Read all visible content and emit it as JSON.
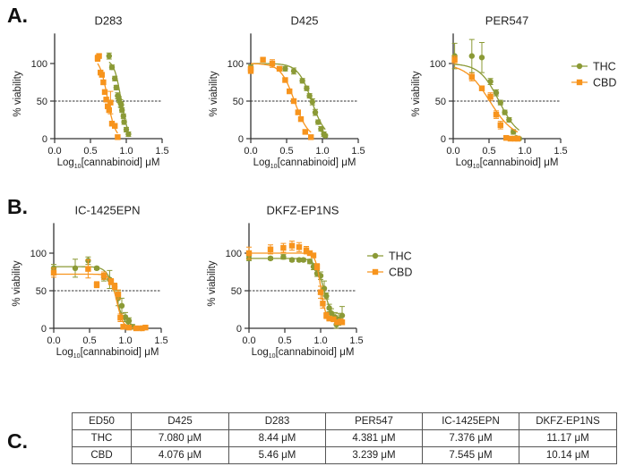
{
  "panel_labels": {
    "a": "A.",
    "b": "B.",
    "c": "C."
  },
  "colors": {
    "THC": "#8b9a36",
    "CBD": "#f7941d"
  },
  "chart_data": [
    {
      "id": "D283",
      "type": "scatter",
      "title": "D283",
      "xlabel_main": "Log",
      "xlabel_sub": "10",
      "xlabel_rest": "[cannabinoid] μM",
      "ylabel": "% viability",
      "xlim": [
        0,
        1.5
      ],
      "ylim": [
        0,
        140
      ],
      "xticks": [
        "0.0",
        "0.5",
        "1.0",
        "1.5"
      ],
      "yticks": [
        "0",
        "50",
        "100"
      ],
      "reference_line_y": 50,
      "legend": false,
      "series": [
        {
          "name": "THC",
          "marker": "circle",
          "fit": {
            "log_ed50": 0.926,
            "hill": -9,
            "top": 105,
            "bottom": 0
          },
          "points": [
            [
              0.76,
              110,
              4
            ],
            [
              0.8,
              95,
              3
            ],
            [
              0.84,
              80,
              3
            ],
            [
              0.86,
              68,
              3
            ],
            [
              0.88,
              57,
              4
            ],
            [
              0.9,
              52,
              4
            ],
            [
              0.92,
              47,
              5
            ],
            [
              0.93,
              45,
              4
            ],
            [
              0.94,
              38,
              3
            ],
            [
              0.96,
              30,
              3
            ],
            [
              0.97,
              22,
              3
            ],
            [
              1.0,
              12,
              3
            ],
            [
              1.03,
              6,
              3
            ]
          ]
        },
        {
          "name": "CBD",
          "marker": "square",
          "fit": {
            "log_ed50": 0.737,
            "hill": -8,
            "top": 108,
            "bottom": 0
          },
          "points": [
            [
              0.6,
              107,
              4
            ],
            [
              0.62,
              110,
              3
            ],
            [
              0.64,
              88,
              3
            ],
            [
              0.66,
              85,
              3
            ],
            [
              0.68,
              75,
              3
            ],
            [
              0.7,
              62,
              3
            ],
            [
              0.72,
              52,
              3
            ],
            [
              0.74,
              43,
              3
            ],
            [
              0.76,
              38,
              3
            ],
            [
              0.78,
              48,
              15
            ],
            [
              0.8,
              20,
              3
            ],
            [
              0.84,
              17,
              3
            ],
            [
              0.88,
              2,
              2
            ]
          ]
        }
      ]
    },
    {
      "id": "D425",
      "type": "scatter",
      "title": "D425",
      "xlabel_main": "Log",
      "xlabel_sub": "10",
      "xlabel_rest": "[cannabinoid] μM",
      "ylabel": "% viability",
      "xlim": [
        0,
        1.5
      ],
      "ylim": [
        0,
        140
      ],
      "xticks": [
        "0.0",
        "0.5",
        "1.0",
        "1.5"
      ],
      "yticks": [
        "0",
        "50",
        "100"
      ],
      "reference_line_y": 50,
      "legend": false,
      "series": [
        {
          "name": "THC",
          "marker": "circle",
          "fit": {
            "log_ed50": 0.85,
            "hill": -4.5,
            "top": 100,
            "bottom": 0
          },
          "points": [
            [
              0.0,
              95,
              3
            ],
            [
              0.48,
              93,
              3
            ],
            [
              0.6,
              90,
              4
            ],
            [
              0.72,
              77,
              3
            ],
            [
              0.78,
              67,
              3
            ],
            [
              0.82,
              57,
              3
            ],
            [
              0.86,
              49,
              4
            ],
            [
              0.9,
              35,
              4
            ],
            [
              0.94,
              22,
              3
            ],
            [
              0.98,
              13,
              3
            ],
            [
              1.02,
              6,
              3
            ],
            [
              1.04,
              4,
              2
            ]
          ]
        },
        {
          "name": "CBD",
          "marker": "square",
          "fit": {
            "log_ed50": 0.61,
            "hill": -4.5,
            "top": 100,
            "bottom": 0
          },
          "points": [
            [
              0.0,
              90,
              3
            ],
            [
              0.0,
              93,
              3
            ],
            [
              0.17,
              105,
              3
            ],
            [
              0.3,
              100,
              5
            ],
            [
              0.4,
              93,
              3
            ],
            [
              0.48,
              78,
              2
            ],
            [
              0.54,
              63,
              2
            ],
            [
              0.6,
              50,
              2
            ],
            [
              0.66,
              35,
              2
            ],
            [
              0.7,
              26,
              2
            ],
            [
              0.76,
              9,
              2
            ],
            [
              0.84,
              2,
              2
            ]
          ]
        }
      ]
    },
    {
      "id": "PER547",
      "type": "scatter",
      "title": "PER547",
      "xlabel_main": "Log",
      "xlabel_sub": "10",
      "xlabel_rest": "[cannabinoid] μM",
      "ylabel": "% viability",
      "xlim": [
        0,
        1.5
      ],
      "ylim": [
        0,
        140
      ],
      "xticks": [
        "0.0",
        "0.5",
        "1.0",
        "1.5"
      ],
      "yticks": [
        "0",
        "50",
        "100"
      ],
      "reference_line_y": 50,
      "legend": true,
      "series": [
        {
          "name": "THC",
          "marker": "circle",
          "fit": {
            "log_ed50": 0.64,
            "hill": -3.2,
            "top": 100,
            "bottom": 0
          },
          "points": [
            [
              0.02,
              110,
              17
            ],
            [
              0.26,
              110,
              22
            ],
            [
              0.4,
              108,
              20
            ],
            [
              0.52,
              76,
              4
            ],
            [
              0.6,
              61,
              4
            ],
            [
              0.66,
              48,
              3
            ],
            [
              0.72,
              35,
              3
            ],
            [
              0.78,
              25,
              3
            ],
            [
              0.84,
              9,
              3
            ],
            [
              0.88,
              1,
              2
            ],
            [
              0.92,
              0,
              2
            ]
          ]
        },
        {
          "name": "CBD",
          "marker": "square",
          "fit": {
            "log_ed50": 0.51,
            "hill": -2.6,
            "top": 100,
            "bottom": 0
          },
          "points": [
            [
              0.02,
              105,
              5
            ],
            [
              0.26,
              82,
              5
            ],
            [
              0.4,
              67,
              3
            ],
            [
              0.52,
              56,
              5
            ],
            [
              0.6,
              32,
              5
            ],
            [
              0.66,
              18,
              5
            ],
            [
              0.74,
              1,
              2
            ],
            [
              0.8,
              0,
              2
            ],
            [
              0.86,
              0,
              2
            ],
            [
              0.9,
              0,
              2
            ]
          ]
        }
      ]
    },
    {
      "id": "IC-1425EPN",
      "type": "scatter",
      "title": "IC-1425EPN",
      "xlabel_main": "Log",
      "xlabel_sub": "10",
      "xlabel_rest": "[cannabinoid] μM",
      "ylabel": "% viability",
      "xlim": [
        0,
        1.5
      ],
      "ylim": [
        0,
        140
      ],
      "xticks": [
        "0.0",
        "0.5",
        "1.0",
        "1.5"
      ],
      "yticks": [
        "0",
        "50",
        "100"
      ],
      "reference_line_y": 50,
      "legend": false,
      "series": [
        {
          "name": "THC",
          "marker": "circle",
          "fit": {
            "log_ed50": 0.87,
            "hill": -7,
            "top": 82,
            "bottom": 0
          },
          "points": [
            [
              0.0,
              80,
              5
            ],
            [
              0.3,
              80,
              12
            ],
            [
              0.48,
              90,
              5
            ],
            [
              0.6,
              80,
              2
            ],
            [
              0.7,
              68,
              5
            ],
            [
              0.78,
              65,
              12
            ],
            [
              0.85,
              55,
              5
            ],
            [
              0.9,
              40,
              10
            ],
            [
              0.95,
              30,
              10
            ],
            [
              1.0,
              15,
              6
            ],
            [
              1.05,
              10,
              4
            ],
            [
              1.1,
              2,
              3
            ],
            [
              1.22,
              0,
              2
            ]
          ]
        },
        {
          "name": "CBD",
          "marker": "square",
          "fit": {
            "log_ed50": 0.88,
            "hill": -10,
            "top": 72,
            "bottom": 0
          },
          "points": [
            [
              0.0,
              74,
              6
            ],
            [
              0.48,
              79,
              12
            ],
            [
              0.6,
              58,
              4
            ],
            [
              0.7,
              70,
              5
            ],
            [
              0.8,
              62,
              4
            ],
            [
              0.85,
              56,
              4
            ],
            [
              0.9,
              45,
              6
            ],
            [
              0.93,
              14,
              5
            ],
            [
              0.97,
              2,
              3
            ],
            [
              1.05,
              1,
              2
            ],
            [
              1.15,
              0,
              2
            ],
            [
              1.23,
              0,
              2
            ],
            [
              1.28,
              1,
              2
            ]
          ]
        }
      ]
    },
    {
      "id": "DKFZ-EP1NS",
      "type": "scatter",
      "title": "DKFZ-EP1NS",
      "xlabel_main": "Log",
      "xlabel_sub": "10",
      "xlabel_rest": "[cannabinoid] μM",
      "ylabel": "% viability",
      "xlim": [
        0,
        1.5
      ],
      "ylim": [
        0,
        140
      ],
      "xticks": [
        "0.0",
        "0.5",
        "1.0",
        "1.5"
      ],
      "yticks": [
        "0",
        "50",
        "100"
      ],
      "reference_line_y": 50,
      "legend": true,
      "series": [
        {
          "name": "THC",
          "marker": "circle",
          "fit": {
            "log_ed50": 1.05,
            "hill": -7,
            "top": 93,
            "bottom": 8
          },
          "points": [
            [
              0.0,
              93,
              3
            ],
            [
              0.3,
              93,
              2
            ],
            [
              0.48,
              95,
              3
            ],
            [
              0.6,
              91,
              2
            ],
            [
              0.7,
              91,
              2
            ],
            [
              0.76,
              91,
              2
            ],
            [
              0.85,
              89,
              3
            ],
            [
              0.9,
              82,
              4
            ],
            [
              0.95,
              73,
              4
            ],
            [
              1.0,
              70,
              5
            ],
            [
              1.05,
              53,
              10
            ],
            [
              1.08,
              43,
              4
            ],
            [
              1.12,
              27,
              5
            ],
            [
              1.15,
              20,
              6
            ],
            [
              1.2,
              15,
              6
            ],
            [
              1.22,
              5,
              5
            ],
            [
              1.25,
              12,
              8
            ],
            [
              1.3,
              17,
              12
            ]
          ]
        },
        {
          "name": "CBD",
          "marker": "square",
          "fit": {
            "log_ed50": 1.0,
            "hill": -12,
            "top": 100,
            "bottom": 10
          },
          "points": [
            [
              0.0,
              100,
              8
            ],
            [
              0.3,
              105,
              6
            ],
            [
              0.48,
              107,
              6
            ],
            [
              0.6,
              110,
              6
            ],
            [
              0.7,
              108,
              6
            ],
            [
              0.8,
              104,
              5
            ],
            [
              0.85,
              100,
              3
            ],
            [
              0.9,
              97,
              3
            ],
            [
              0.95,
              82,
              4
            ],
            [
              1.0,
              48,
              8
            ],
            [
              1.03,
              33,
              6
            ],
            [
              1.08,
              17,
              4
            ],
            [
              1.12,
              13,
              3
            ],
            [
              1.18,
              12,
              3
            ],
            [
              1.23,
              8,
              3
            ],
            [
              1.28,
              9,
              3
            ],
            [
              1.3,
              8,
              3
            ]
          ]
        }
      ]
    }
  ],
  "table": {
    "header": [
      "ED50",
      "D425",
      "D283",
      "PER547",
      "IC-1425EPN",
      "DKFZ-EP1NS"
    ],
    "rows": [
      [
        "THC",
        "7.080 μM",
        "8.44 μM",
        "4.381 μM",
        "7.376 μM",
        "11.17 μM"
      ],
      [
        "CBD",
        "4.076 μM",
        "5.46 μM",
        "3.239 μM",
        "7.545 μM",
        "10.14 μM"
      ]
    ]
  }
}
